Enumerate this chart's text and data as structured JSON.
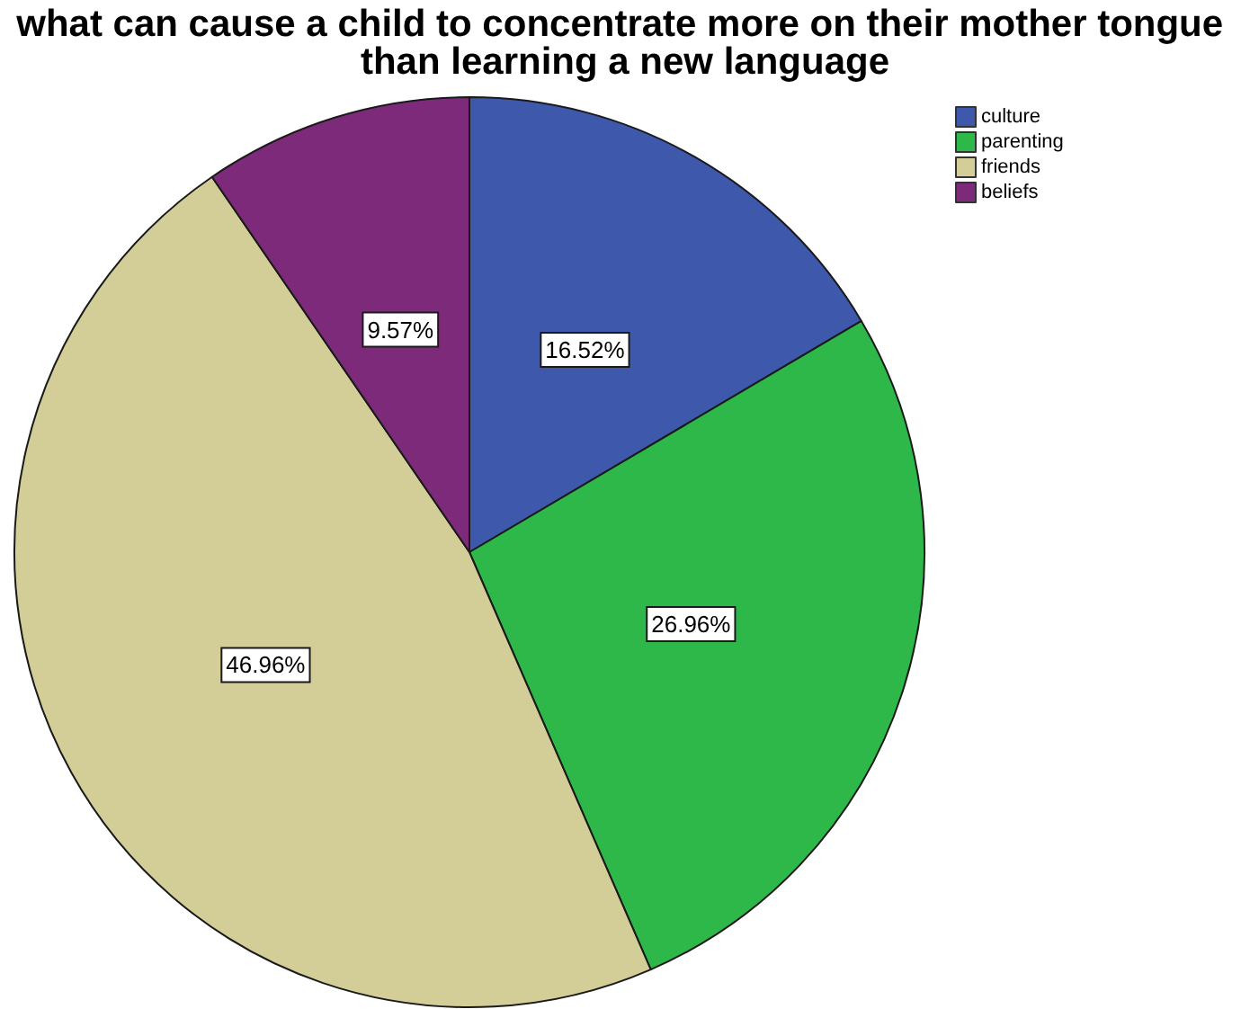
{
  "chart_data": {
    "type": "pie",
    "title": "what can cause a child to concentrate more on their mother tongue than learning a new language",
    "categories": [
      "culture",
      "parenting",
      "friends",
      "beliefs"
    ],
    "values": [
      16.52,
      26.96,
      46.96,
      9.57
    ],
    "value_labels": [
      "16.52%",
      "26.96%",
      "46.96%",
      "9.57%"
    ],
    "colors": [
      "#3e58ac",
      "#2fb84a",
      "#d3ce97",
      "#7d2a7a"
    ],
    "legend": "top right"
  }
}
